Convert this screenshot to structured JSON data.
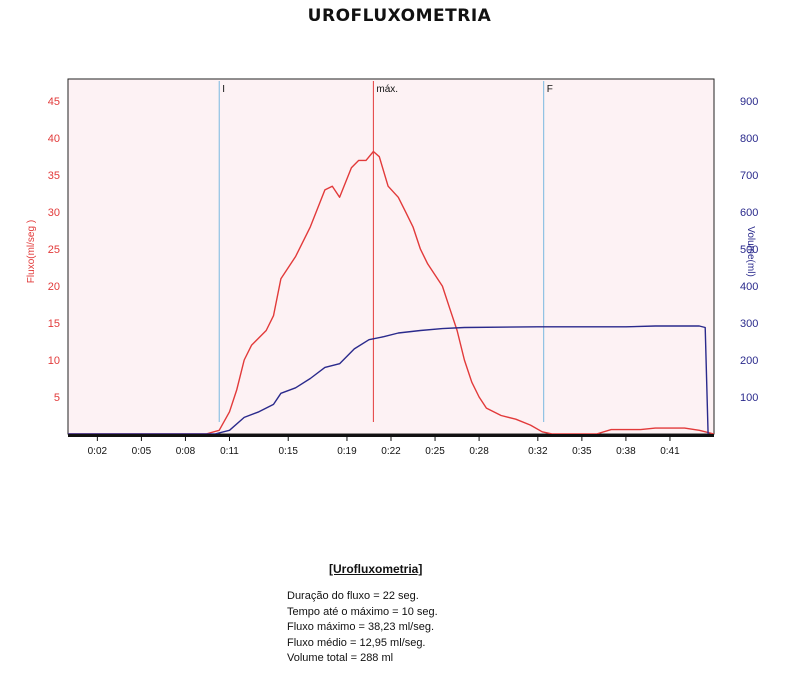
{
  "title": "UROFLUXOMETRIA",
  "chart_data": {
    "type": "line",
    "xlabel": "",
    "x_ticks": [
      "0:02",
      "0:05",
      "0:08",
      "0:11",
      "0:15",
      "0:19",
      "0:22",
      "0:25",
      "0:28",
      "0:32",
      "0:35",
      "0:38",
      "0:41"
    ],
    "x_tick_seconds": [
      2,
      5,
      8,
      11,
      15,
      19,
      22,
      25,
      28,
      32,
      35,
      38,
      41
    ],
    "xlim": [
      0,
      44
    ],
    "left_axis": {
      "label": "Fluxo(ml/seg )",
      "ylim": [
        0,
        48
      ],
      "ticks": [
        5,
        10,
        15,
        20,
        25,
        30,
        35,
        40,
        45
      ],
      "color": "#e23a3a"
    },
    "right_axis": {
      "label": "Volume(ml)",
      "ylim": [
        0,
        960
      ],
      "ticks": [
        100,
        200,
        300,
        400,
        500,
        600,
        700,
        800,
        900
      ],
      "color": "#2a2a8c"
    },
    "markers": [
      {
        "label": "I",
        "x": 10.3,
        "color": "#7ab8e0"
      },
      {
        "label": "máx.",
        "x": 20.8,
        "color": "#e23a3a"
      },
      {
        "label": "F",
        "x": 32.4,
        "color": "#7ab8e0"
      }
    ],
    "series": [
      {
        "axis": "left",
        "color": "#e23a3a",
        "points": [
          [
            0,
            0
          ],
          [
            9.4,
            0
          ],
          [
            10.3,
            0.5
          ],
          [
            11,
            3
          ],
          [
            11.5,
            6
          ],
          [
            12,
            10
          ],
          [
            12.5,
            12
          ],
          [
            13.5,
            14
          ],
          [
            14,
            16
          ],
          [
            14.5,
            21
          ],
          [
            15.5,
            24
          ],
          [
            16.5,
            28
          ],
          [
            17.5,
            33
          ],
          [
            18,
            33.5
          ],
          [
            18.5,
            32
          ],
          [
            19.3,
            36
          ],
          [
            19.8,
            37
          ],
          [
            20.3,
            37
          ],
          [
            20.8,
            38.2
          ],
          [
            21.2,
            37.5
          ],
          [
            21.8,
            33.5
          ],
          [
            22.5,
            32
          ],
          [
            23,
            30
          ],
          [
            23.5,
            28
          ],
          [
            24,
            25
          ],
          [
            24.5,
            23
          ],
          [
            25.5,
            20
          ],
          [
            26,
            17
          ],
          [
            26.5,
            14
          ],
          [
            27,
            10
          ],
          [
            27.5,
            7
          ],
          [
            28,
            5
          ],
          [
            28.5,
            3.5
          ],
          [
            29.5,
            2.5
          ],
          [
            30.5,
            2
          ],
          [
            31.5,
            1.2
          ],
          [
            32.3,
            0.3
          ],
          [
            33,
            0
          ],
          [
            36,
            0
          ],
          [
            37,
            0.6
          ],
          [
            39,
            0.6
          ],
          [
            40,
            0.8
          ],
          [
            42,
            0.8
          ],
          [
            43,
            0.5
          ],
          [
            44,
            0
          ]
        ]
      },
      {
        "axis": "right",
        "color": "#2a2a8c",
        "points": [
          [
            0,
            0
          ],
          [
            10,
            0
          ],
          [
            11,
            10
          ],
          [
            12,
            45
          ],
          [
            13,
            60
          ],
          [
            14,
            80
          ],
          [
            14.5,
            110
          ],
          [
            15.5,
            125
          ],
          [
            16.5,
            150
          ],
          [
            17.5,
            180
          ],
          [
            18.5,
            190
          ],
          [
            19.5,
            230
          ],
          [
            20.5,
            255
          ],
          [
            21.5,
            263
          ],
          [
            22.5,
            273
          ],
          [
            24,
            280
          ],
          [
            25.5,
            285
          ],
          [
            27,
            288
          ],
          [
            32,
            290
          ],
          [
            36,
            290
          ],
          [
            38,
            290
          ],
          [
            40,
            292
          ],
          [
            43,
            292
          ],
          [
            43.4,
            288
          ],
          [
            43.6,
            0
          ]
        ]
      }
    ]
  },
  "summary": {
    "heading": "[Urofluxometria]",
    "lines": [
      "Duração do fluxo = 22 seg.",
      "Tempo até o máximo = 10 seg.",
      "Fluxo máximo = 38,23 ml/seg.",
      "Fluxo médio = 12,95 ml/seg.",
      "Volume total = 288 ml"
    ]
  }
}
